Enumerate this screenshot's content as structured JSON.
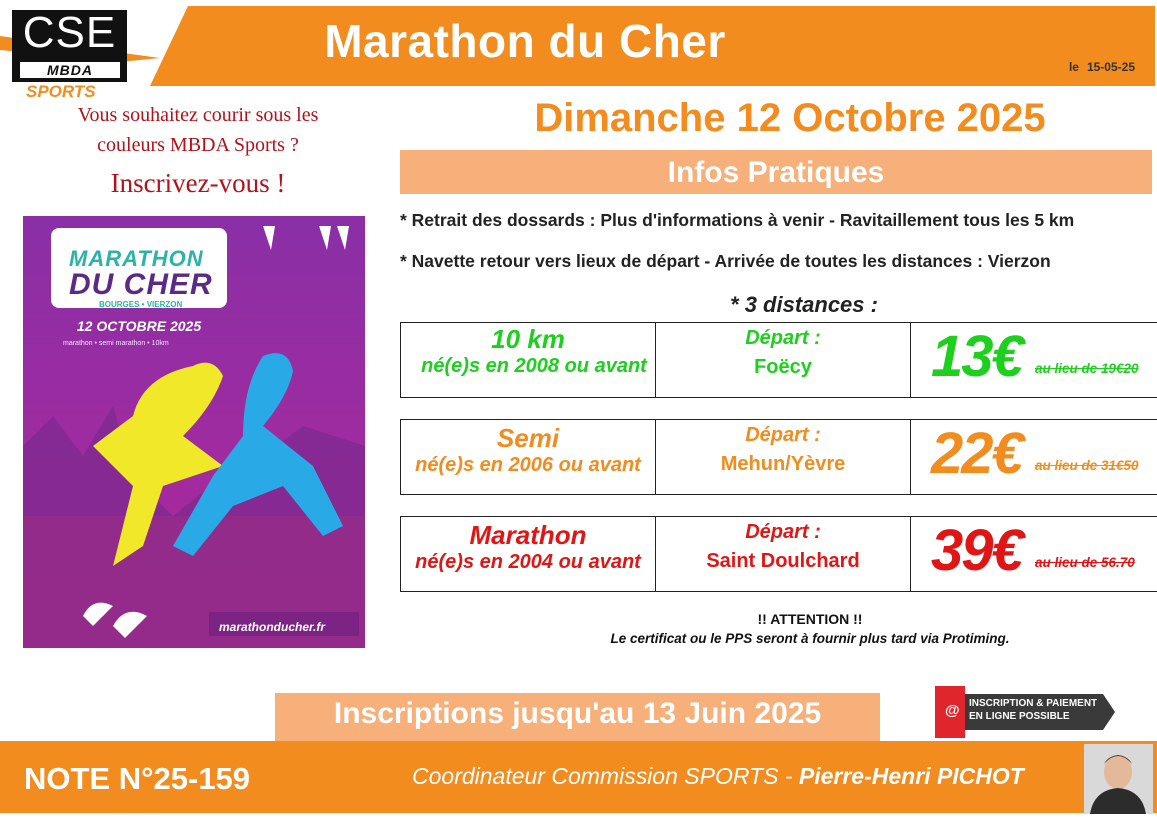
{
  "header": {
    "title": "Marathon du Cher",
    "date_prefix": "le",
    "date": "15-05-25",
    "color": "#f28c1e"
  },
  "logo": {
    "cse": "CSE",
    "mbda": "MBDA",
    "sports": "SPORTS"
  },
  "invite": {
    "line_1": "Vous souhaitez courir sous les",
    "line_2": "couleurs MBDA Sports ?",
    "line_3": "Inscrivez-vous !"
  },
  "poster": {
    "brand_line_1": "MARATHON",
    "brand_line_2": "DU CHER",
    "brand_line_3": "BOURGES • VIERZON",
    "date": "12 OCTOBRE 2025",
    "subtitle": "marathon • semi marathon • 10km",
    "site": "marathonducher.fr"
  },
  "event": {
    "date": "Dimanche 12 Octobre 2025",
    "infos_title": "Infos Pratiques",
    "info_1": "* Retrait des dossards : Plus d'informations à venir - Ravitaillement tous les 5 km",
    "info_2": "* Navette retour vers lieux de départ - Arrivée de toutes les distances : Vierzon",
    "distances_title": "* 3 distances :"
  },
  "races": [
    {
      "name": "10 km",
      "birth": "né(e)s en 2008 ou avant",
      "departure_label": "Départ :",
      "departure": "Foëcy",
      "price": "13€",
      "old_price": "au lieu de 19€20",
      "color": "#1ed01e"
    },
    {
      "name": "Semi",
      "birth": "né(e)s en 2006 ou avant",
      "departure_label": "Départ :",
      "departure": "Mehun/Yèvre",
      "price": "22€",
      "old_price": "au lieu de 31€50",
      "color": "#f28c1e"
    },
    {
      "name": "Marathon",
      "birth": "né(e)s en 2004 ou avant",
      "departure_label": "Départ :",
      "departure": "Saint Doulchard",
      "price": "39€",
      "old_price": "au lieu de 56.70",
      "color": "#e01616"
    }
  ],
  "attention": {
    "title": "!! ATTENTION !!",
    "text": "Le certificat ou le PPS seront à fournir plus tard via Protiming."
  },
  "registration": {
    "text": "Inscriptions jusqu'au 13 Juin 2025",
    "badge_line_1": "INSCRIPTION & PAIEMENT",
    "badge_line_2": "EN LIGNE POSSIBLE",
    "badge_icon": "@"
  },
  "footer": {
    "note": "NOTE N°25-159",
    "coordinator_prefix": "Coordinateur Commission SPORTS - ",
    "coordinator_name": "Pierre-Henri PICHOT"
  }
}
